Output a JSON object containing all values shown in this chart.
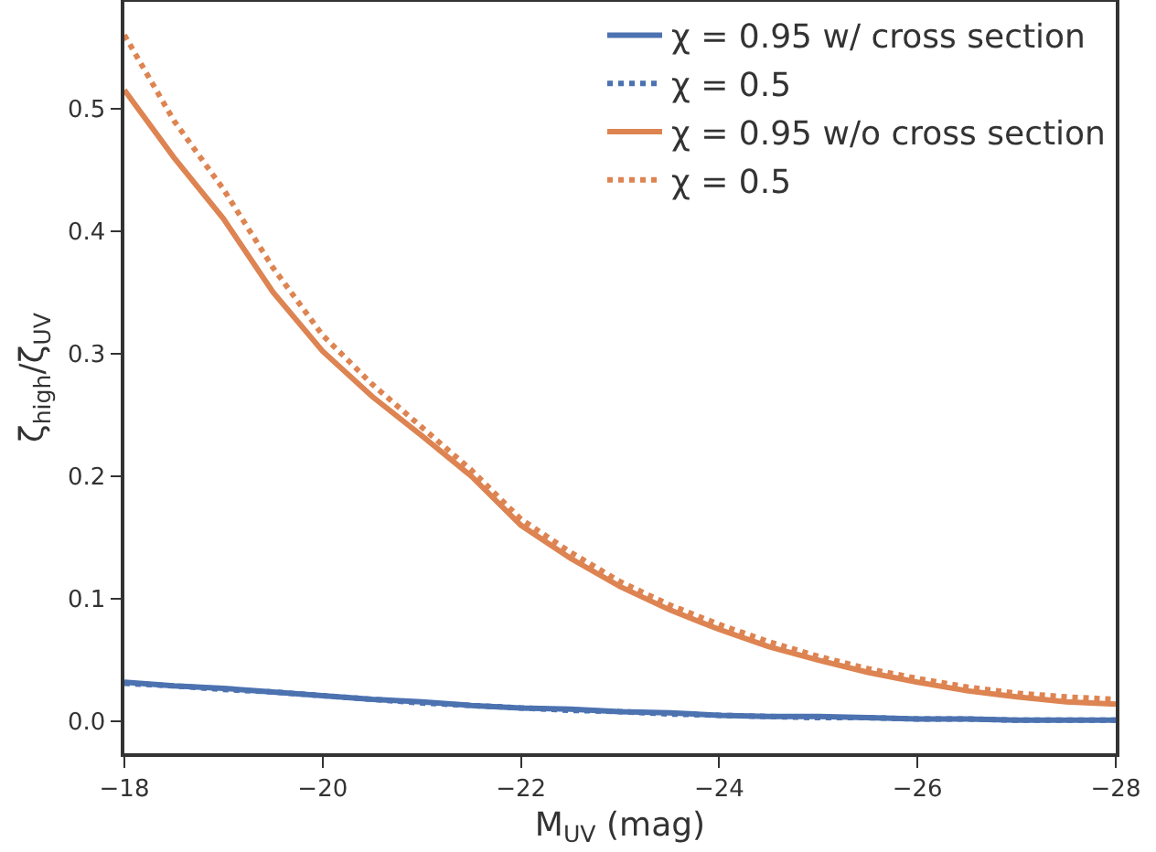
{
  "chart_data": {
    "type": "line",
    "xlabel": "M$_{UV}$ (mag)",
    "ylabel": "ζ$_{high}$/ζ$_{UV}$",
    "x": [
      -18,
      -18.5,
      -19,
      -19.5,
      -20,
      -20.5,
      -21,
      -21.5,
      -22,
      -22.5,
      -23,
      -23.5,
      -24,
      -24.5,
      -25,
      -25.5,
      -26,
      -26.5,
      -27,
      -27.5,
      -28
    ],
    "series": [
      {
        "name": "χ = 0.95 w/ cross section",
        "color": "#4c72b0",
        "line_style": "solid",
        "values": [
          0.032,
          0.029,
          0.027,
          0.024,
          0.021,
          0.018,
          0.016,
          0.013,
          0.011,
          0.01,
          0.008,
          0.007,
          0.005,
          0.004,
          0.004,
          0.003,
          0.002,
          0.002,
          0.001,
          0.001,
          0.001
        ]
      },
      {
        "name": "χ = 0.5",
        "color": "#4c72b0",
        "line_style": "dotted",
        "values": [
          0.031,
          0.029,
          0.026,
          0.024,
          0.021,
          0.018,
          0.015,
          0.013,
          0.011,
          0.009,
          0.008,
          0.006,
          0.005,
          0.004,
          0.003,
          0.003,
          0.002,
          0.002,
          0.001,
          0.001,
          0.001
        ]
      },
      {
        "name": "χ = 0.95 w/o cross section",
        "color": "#dd8452",
        "line_style": "solid",
        "values": [
          0.515,
          0.46,
          0.41,
          0.35,
          0.302,
          0.265,
          0.233,
          0.2,
          0.16,
          0.133,
          0.11,
          0.091,
          0.075,
          0.061,
          0.05,
          0.04,
          0.032,
          0.025,
          0.02,
          0.016,
          0.014
        ]
      },
      {
        "name": "χ = 0.5",
        "color": "#dd8452",
        "line_style": "dotted",
        "values": [
          0.56,
          0.49,
          0.434,
          0.37,
          0.315,
          0.275,
          0.24,
          0.205,
          0.165,
          0.138,
          0.114,
          0.095,
          0.079,
          0.065,
          0.053,
          0.043,
          0.035,
          0.028,
          0.023,
          0.02,
          0.018
        ]
      }
    ],
    "xlim": [
      -18,
      -28
    ],
    "xticks": [
      {
        "value": -18,
        "label": "−18"
      },
      {
        "value": -20,
        "label": "−20"
      },
      {
        "value": -22,
        "label": "−22"
      },
      {
        "value": -24,
        "label": "−24"
      },
      {
        "value": -26,
        "label": "−26"
      },
      {
        "value": -28,
        "label": "−28"
      }
    ],
    "ylim": [
      -0.026,
      0.587
    ],
    "yticks": [
      {
        "value": 0,
        "label": "0.0"
      },
      0.1,
      0.2,
      0.3,
      0.4,
      0.5
    ],
    "grid": false,
    "legend": "top right",
    "marker": "none"
  }
}
